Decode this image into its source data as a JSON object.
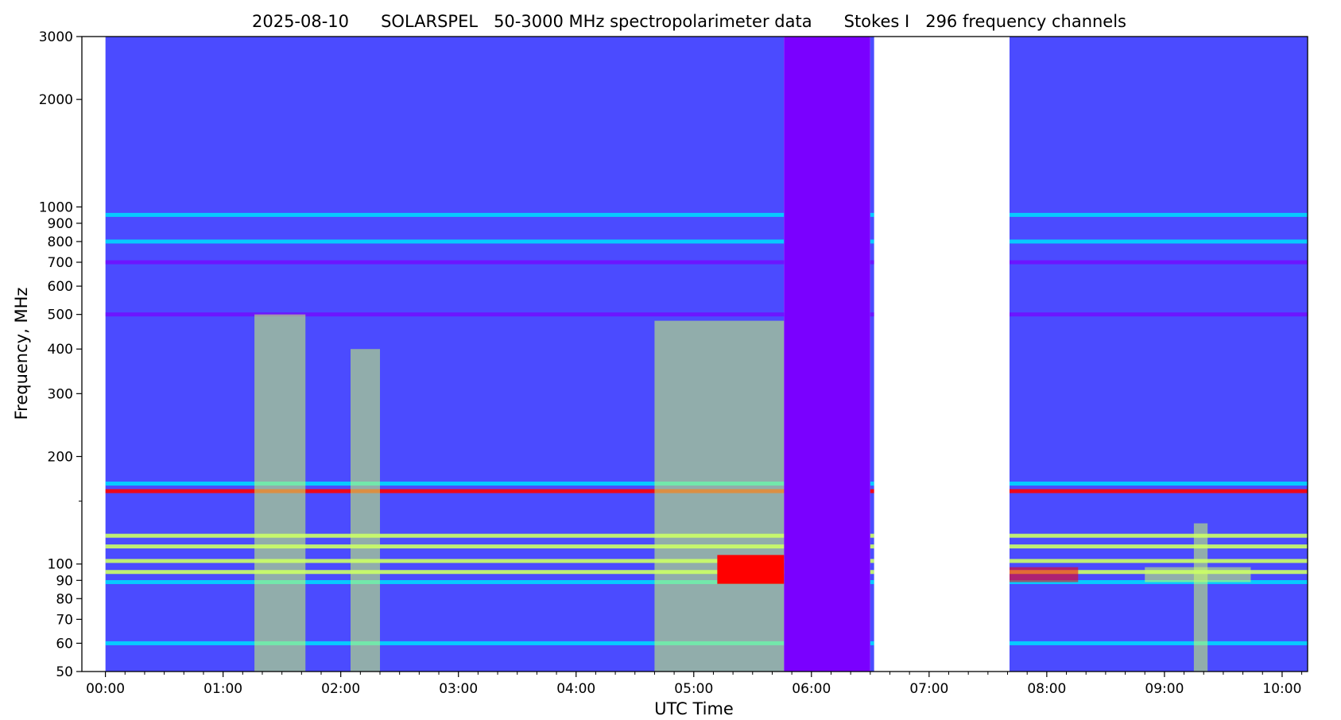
{
  "chart_data": {
    "type": "heatmap",
    "title": "2025-08-10      SOLARSPEL   50-3000 MHz spectropolarimeter data      Stokes I   296 frequency channels",
    "xlabel": "UTC Time",
    "ylabel": "Frequency, MHz",
    "x_scale": "time",
    "xlim": [
      "23:48",
      "10:13"
    ],
    "x_ticks": [
      "00:00",
      "01:00",
      "02:00",
      "03:00",
      "04:00",
      "05:00",
      "06:00",
      "07:00",
      "08:00",
      "09:00",
      "10:00"
    ],
    "y_scale": "log",
    "ylim": [
      50,
      3000
    ],
    "y_ticks": [
      3000,
      2000,
      1000,
      900,
      800,
      700,
      600,
      500,
      400,
      300,
      200,
      100,
      90,
      80,
      70,
      60,
      50
    ],
    "y_minor_ticks": [
      150
    ],
    "data_segments": [
      {
        "start": "00:00",
        "end": "05:46",
        "level": "normal"
      },
      {
        "start": "05:46",
        "end": "06:30",
        "level": "low"
      },
      {
        "start": "06:30",
        "end": "06:32",
        "level": "normal"
      },
      {
        "start": "07:41",
        "end": "10:13",
        "level": "normal"
      }
    ],
    "no_data_gaps": [
      {
        "start": "23:48",
        "end": "00:00"
      },
      {
        "start": "06:32",
        "end": "07:41"
      }
    ],
    "frequency_bands": [
      {
        "freq_mhz": 950,
        "intensity": "moderate"
      },
      {
        "freq_mhz": 800,
        "intensity": "moderate"
      },
      {
        "freq_mhz": 700,
        "intensity": "low"
      },
      {
        "freq_mhz": 500,
        "intensity": "low"
      },
      {
        "freq_mhz": 168,
        "intensity": "moderate"
      },
      {
        "freq_mhz": 160,
        "intensity": "very high"
      },
      {
        "freq_mhz": 120,
        "intensity": "high"
      },
      {
        "freq_mhz": 112,
        "intensity": "high"
      },
      {
        "freq_mhz": 102,
        "intensity": "high"
      },
      {
        "freq_mhz": 95,
        "intensity": "high"
      },
      {
        "freq_mhz": 89,
        "intensity": "moderate"
      },
      {
        "freq_mhz": 60,
        "intensity": "moderate"
      }
    ],
    "bursts": [
      {
        "start": "01:16",
        "end": "01:42",
        "freq_min": 50,
        "freq_max": 500,
        "intensity": "high"
      },
      {
        "start": "02:05",
        "end": "02:20",
        "freq_min": 50,
        "freq_max": 400,
        "intensity": "high"
      },
      {
        "start": "04:40",
        "end": "05:46",
        "freq_min": 50,
        "freq_max": 480,
        "intensity": "high"
      },
      {
        "start": "05:12",
        "end": "05:46",
        "freq_min": 88,
        "freq_max": 106,
        "intensity": "saturated"
      },
      {
        "start": "07:41",
        "end": "08:16",
        "freq_min": 89,
        "freq_max": 98,
        "intensity": "very high"
      },
      {
        "start": "08:50",
        "end": "09:44",
        "freq_min": 89,
        "freq_max": 98,
        "intensity": "high"
      },
      {
        "start": "09:15",
        "end": "09:22",
        "freq_min": 50,
        "freq_max": 130,
        "intensity": "high"
      }
    ],
    "colormap": [
      "#4b4bff",
      "#7a00ff",
      "#00d8ff",
      "#ccff66",
      "#ff0000"
    ],
    "no_data_color": "#ffffff"
  }
}
